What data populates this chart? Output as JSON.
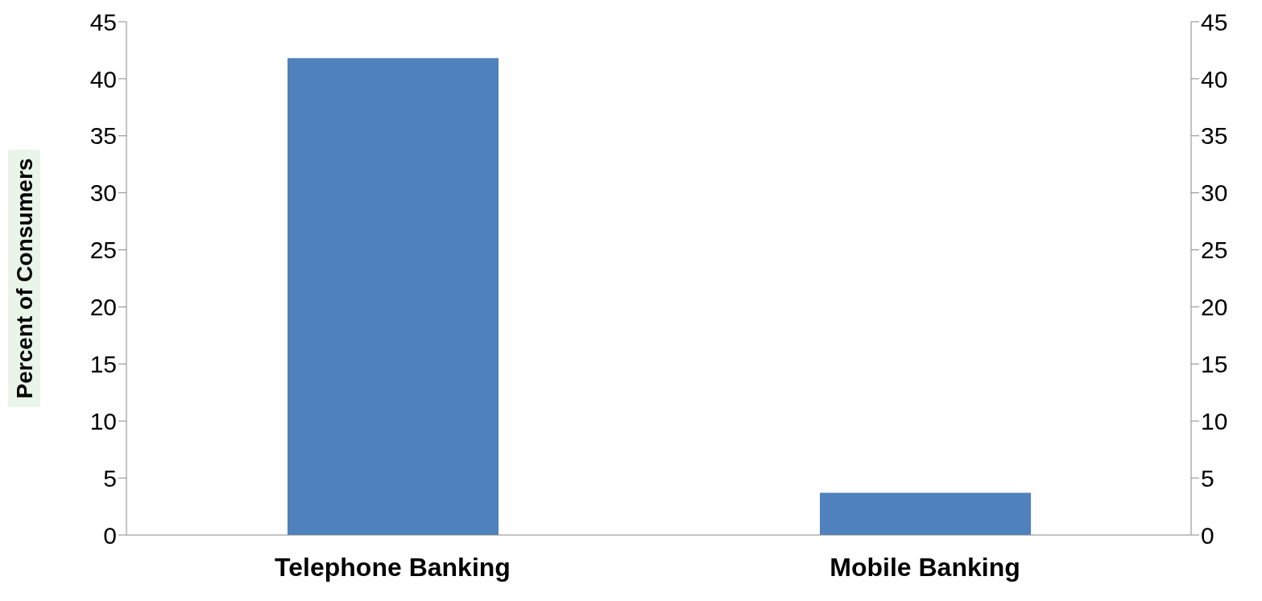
{
  "chart_data": {
    "type": "bar",
    "ylabel": "Percent of Consumers",
    "categories": [
      "Telephone Banking",
      "Mobile Banking"
    ],
    "values": [
      41.8,
      3.7
    ],
    "color": "#4f81bd",
    "ylim": [
      0,
      45
    ],
    "yticks": [
      0,
      5,
      10,
      15,
      20,
      25,
      30,
      35,
      40,
      45
    ],
    "y2lim": [
      0,
      45
    ],
    "y2ticks": [
      0,
      5,
      10,
      15,
      20,
      25,
      30,
      35,
      40,
      45
    ],
    "grid": false,
    "legend": false
  }
}
